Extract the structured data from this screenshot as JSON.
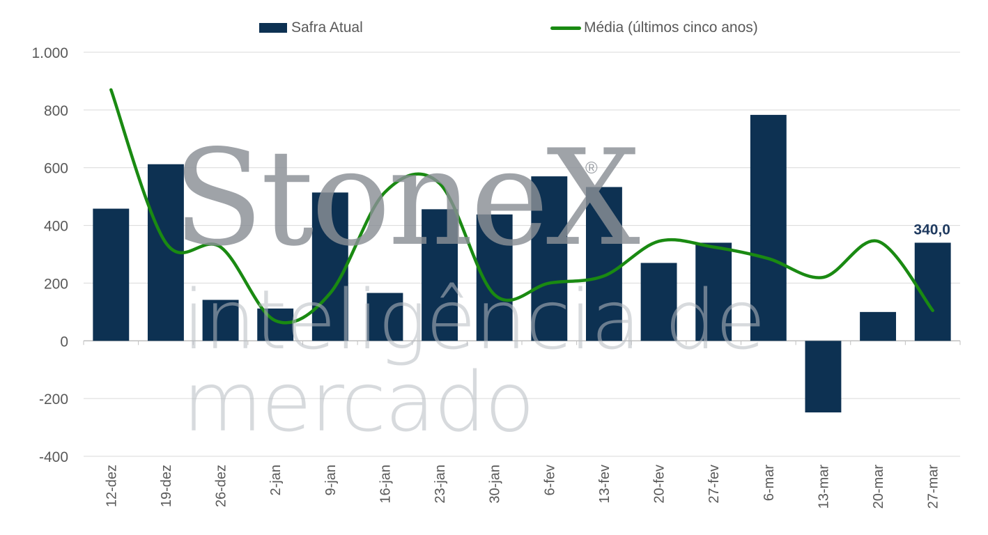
{
  "legend": {
    "bar_label": "Safra Atual",
    "line_label": "Média (últimos cinco anos)"
  },
  "watermark": {
    "logo": "StoneX",
    "registered": "®",
    "tagline": "inteligência de mercado"
  },
  "colors": {
    "bar": "#0d3152",
    "line": "#1a8a12",
    "grid": "#d9d9d9",
    "axis_text": "#595959",
    "label_text": "#1f3a5f"
  },
  "chart_data": {
    "type": "bar",
    "categories": [
      "12-dez",
      "19-dez",
      "26-dez",
      "2-jan",
      "9-jan",
      "16-jan",
      "23-jan",
      "30-jan",
      "6-fev",
      "13-fev",
      "20-fev",
      "27-fev",
      "6-mar",
      "13-mar",
      "20-mar",
      "27-mar"
    ],
    "series": [
      {
        "name": "Safra Atual",
        "type": "bar",
        "values": [
          458,
          612,
          142,
          112,
          514,
          166,
          456,
          438,
          570,
          533,
          270,
          340,
          783,
          -248,
          100,
          340
        ]
      },
      {
        "name": "Média (últimos cinco anos)",
        "type": "line",
        "values": [
          870,
          340,
          325,
          70,
          165,
          515,
          545,
          160,
          200,
          225,
          345,
          325,
          285,
          220,
          345,
          105
        ]
      }
    ],
    "ylim": [
      -400,
      1000
    ],
    "yticks": [
      -400,
      -200,
      0,
      200,
      400,
      600,
      800,
      1000
    ],
    "ytick_labels": [
      "-400",
      "-200",
      "0",
      "200",
      "400",
      "600",
      "800",
      "1.000"
    ],
    "data_labels": [
      {
        "category": "27-mar",
        "text": "340,0"
      }
    ],
    "grid": true,
    "legend_position": "top"
  }
}
